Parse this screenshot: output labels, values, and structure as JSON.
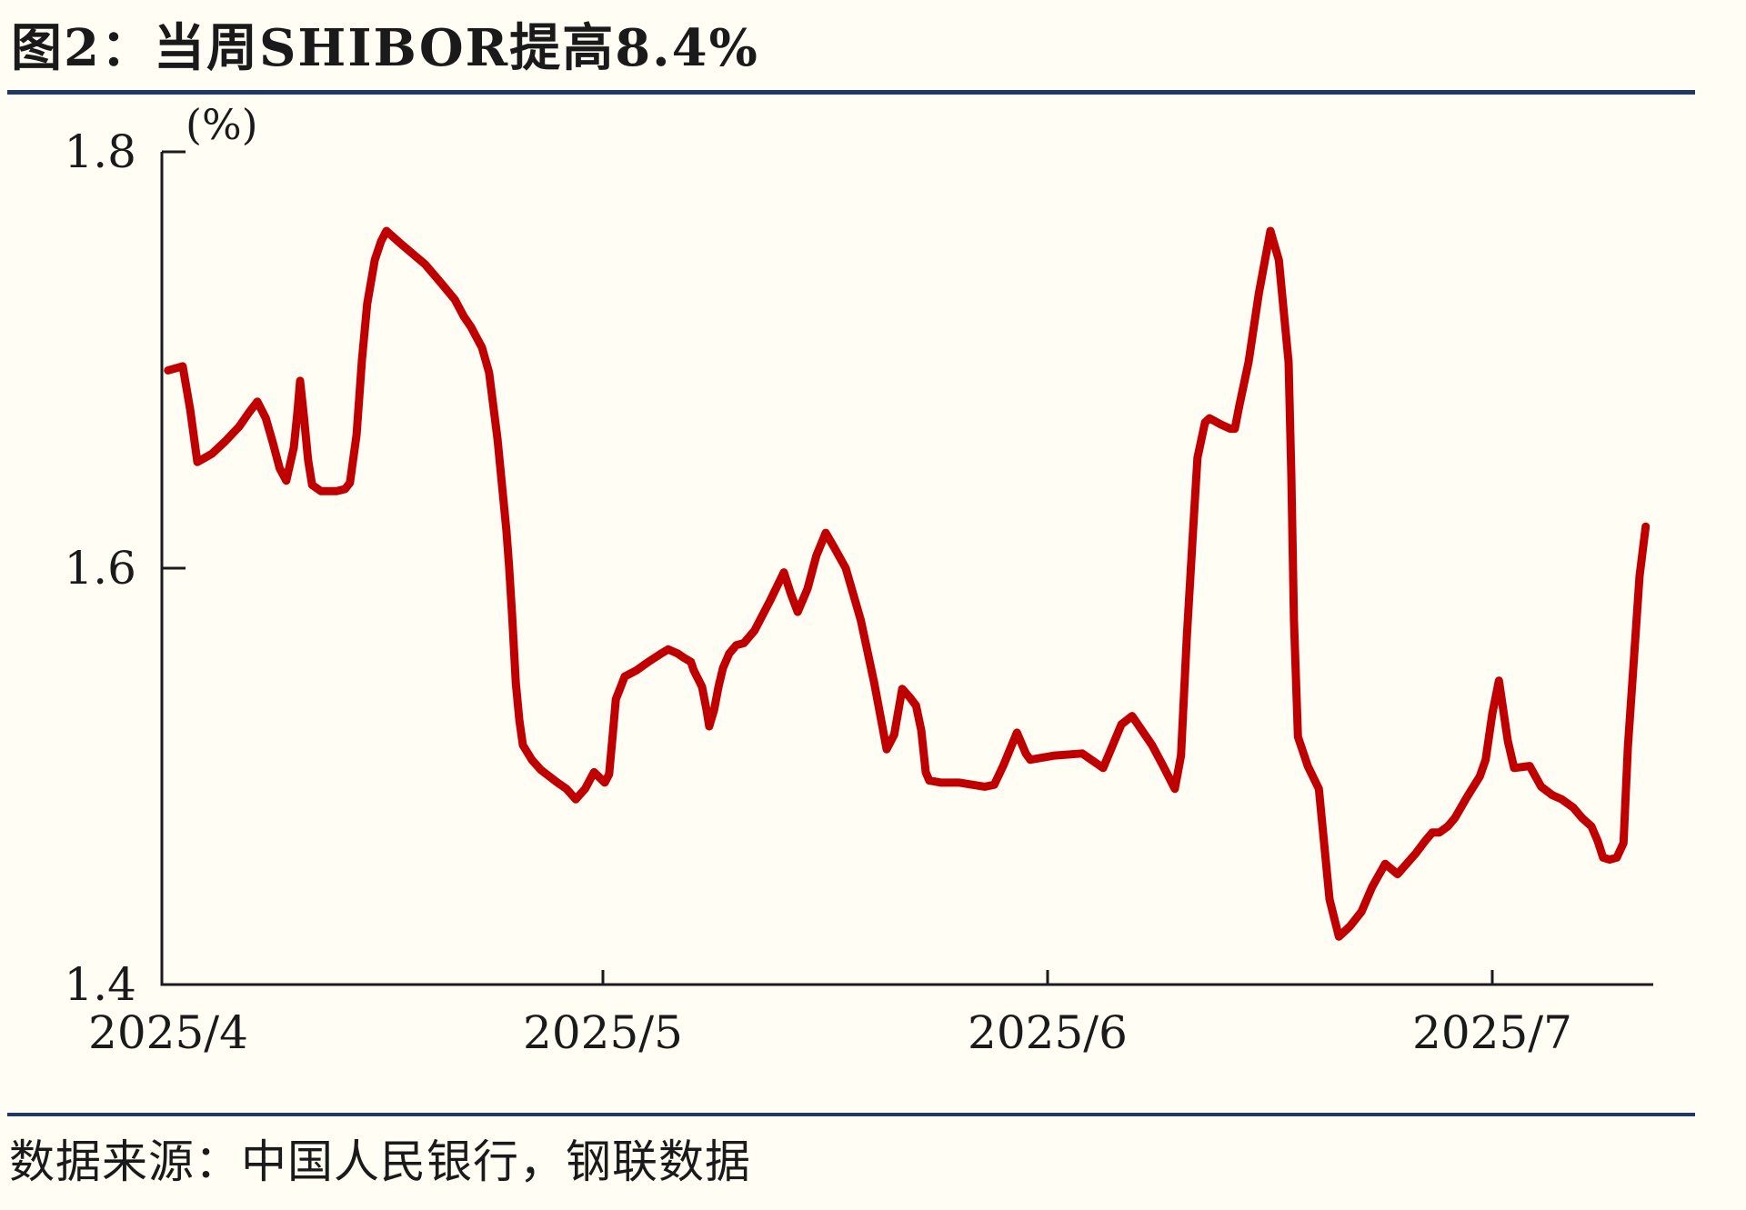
{
  "header": {
    "title": "图2：当周SHIBOR提高8.4%"
  },
  "footer": {
    "source": "数据来源：中国人民银行，钢联数据"
  },
  "colors": {
    "background": "#fffdf4",
    "line": "#c00000",
    "rule": "#1f3864",
    "axis": "#1b1b1b",
    "text": "#1a1a1a"
  },
  "chart_data": {
    "type": "line",
    "title": "当周SHIBOR提高8.4%",
    "unit_label": "(%)",
    "legend": "none",
    "grid": false,
    "x_axis": {
      "unit": "months since 2025/4/1",
      "ticks": [
        0,
        1,
        2,
        3
      ],
      "tick_labels": [
        "2025/4",
        "2025/5",
        "2025/6",
        "2025/7"
      ],
      "range": [
        0.008,
        3.362
      ]
    },
    "y_axis": {
      "ticks": [
        1.8,
        1.6,
        1.4
      ],
      "tick_labels": [
        "1.8",
        "1.6",
        "1.4"
      ],
      "range": [
        1.4,
        1.8
      ]
    },
    "series": [
      {
        "name": "SHIBOR",
        "color": "#c00000",
        "points": [
          [
            0.022,
            1.695
          ],
          [
            0.055,
            1.697
          ],
          [
            0.072,
            1.676
          ],
          [
            0.088,
            1.651
          ],
          [
            0.105,
            1.653
          ],
          [
            0.121,
            1.655
          ],
          [
            0.151,
            1.661
          ],
          [
            0.182,
            1.668
          ],
          [
            0.205,
            1.675
          ],
          [
            0.223,
            1.68
          ],
          [
            0.242,
            1.672
          ],
          [
            0.258,
            1.66
          ],
          [
            0.273,
            1.648
          ],
          [
            0.288,
            1.642
          ],
          [
            0.305,
            1.658
          ],
          [
            0.313,
            1.675
          ],
          [
            0.319,
            1.69
          ],
          [
            0.328,
            1.672
          ],
          [
            0.337,
            1.652
          ],
          [
            0.346,
            1.64
          ],
          [
            0.366,
            1.637
          ],
          [
            0.401,
            1.637
          ],
          [
            0.42,
            1.638
          ],
          [
            0.431,
            1.641
          ],
          [
            0.446,
            1.664
          ],
          [
            0.458,
            1.7
          ],
          [
            0.47,
            1.727
          ],
          [
            0.487,
            1.748
          ],
          [
            0.501,
            1.757
          ],
          [
            0.513,
            1.762
          ],
          [
            0.55,
            1.755
          ],
          [
            0.6,
            1.746
          ],
          [
            0.636,
            1.737
          ],
          [
            0.667,
            1.729
          ],
          [
            0.687,
            1.721
          ],
          [
            0.703,
            1.716
          ],
          [
            0.718,
            1.71
          ],
          [
            0.728,
            1.706
          ],
          [
            0.744,
            1.694
          ],
          [
            0.763,
            1.662
          ],
          [
            0.773,
            1.64
          ],
          [
            0.783,
            1.618
          ],
          [
            0.789,
            1.601
          ],
          [
            0.796,
            1.577
          ],
          [
            0.804,
            1.545
          ],
          [
            0.812,
            1.527
          ],
          [
            0.82,
            1.515
          ],
          [
            0.84,
            1.508
          ],
          [
            0.861,
            1.503
          ],
          [
            0.898,
            1.497
          ],
          [
            0.918,
            1.494
          ],
          [
            0.939,
            1.489
          ],
          [
            0.96,
            1.494
          ],
          [
            0.98,
            1.502
          ],
          [
            1.004,
            1.497
          ],
          [
            1.014,
            1.501
          ],
          [
            1.022,
            1.52
          ],
          [
            1.029,
            1.537
          ],
          [
            1.049,
            1.548
          ],
          [
            1.076,
            1.551
          ],
          [
            1.102,
            1.555
          ],
          [
            1.131,
            1.559
          ],
          [
            1.147,
            1.561
          ],
          [
            1.168,
            1.559
          ],
          [
            1.182,
            1.557
          ],
          [
            1.198,
            1.555
          ],
          [
            1.204,
            1.551
          ],
          [
            1.223,
            1.543
          ],
          [
            1.233,
            1.532
          ],
          [
            1.239,
            1.524
          ],
          [
            1.25,
            1.532
          ],
          [
            1.26,
            1.543
          ],
          [
            1.27,
            1.552
          ],
          [
            1.284,
            1.559
          ],
          [
            1.3,
            1.563
          ],
          [
            1.317,
            1.564
          ],
          [
            1.341,
            1.57
          ],
          [
            1.375,
            1.584
          ],
          [
            1.407,
            1.598
          ],
          [
            1.422,
            1.588
          ],
          [
            1.438,
            1.579
          ],
          [
            1.46,
            1.59
          ],
          [
            1.48,
            1.606
          ],
          [
            1.501,
            1.617
          ],
          [
            1.52,
            1.61
          ],
          [
            1.546,
            1.6
          ],
          [
            1.58,
            1.575
          ],
          [
            1.61,
            1.545
          ],
          [
            1.638,
            1.513
          ],
          [
            1.655,
            1.52
          ],
          [
            1.673,
            1.542
          ],
          [
            1.69,
            1.538
          ],
          [
            1.704,
            1.534
          ],
          [
            1.716,
            1.522
          ],
          [
            1.726,
            1.502
          ],
          [
            1.734,
            1.498
          ],
          [
            1.761,
            1.497
          ],
          [
            1.802,
            1.497
          ],
          [
            1.859,
            1.495
          ],
          [
            1.88,
            1.496
          ],
          [
            1.9,
            1.505
          ],
          [
            1.931,
            1.521
          ],
          [
            1.951,
            1.511
          ],
          [
            1.961,
            1.508
          ],
          [
            2.016,
            1.51
          ],
          [
            2.078,
            1.511
          ],
          [
            2.125,
            1.504
          ],
          [
            2.166,
            1.525
          ],
          [
            2.19,
            1.529
          ],
          [
            2.235,
            1.515
          ],
          [
            2.26,
            1.505
          ],
          [
            2.286,
            1.494
          ],
          [
            2.3,
            1.51
          ],
          [
            2.313,
            1.567
          ],
          [
            2.329,
            1.625
          ],
          [
            2.337,
            1.653
          ],
          [
            2.354,
            1.67
          ],
          [
            2.364,
            1.672
          ],
          [
            2.39,
            1.669
          ],
          [
            2.411,
            1.667
          ],
          [
            2.421,
            1.667
          ],
          [
            2.431,
            1.678
          ],
          [
            2.452,
            1.699
          ],
          [
            2.475,
            1.732
          ],
          [
            2.501,
            1.762
          ],
          [
            2.52,
            1.748
          ],
          [
            2.542,
            1.699
          ],
          [
            2.548,
            1.645
          ],
          [
            2.554,
            1.575
          ],
          [
            2.563,
            1.519
          ],
          [
            2.585,
            1.505
          ],
          [
            2.61,
            1.494
          ],
          [
            2.634,
            1.441
          ],
          [
            2.655,
            1.423
          ],
          [
            2.68,
            1.428
          ],
          [
            2.706,
            1.435
          ],
          [
            2.73,
            1.447
          ],
          [
            2.759,
            1.458
          ],
          [
            2.787,
            1.453
          ],
          [
            2.828,
            1.463
          ],
          [
            2.849,
            1.469
          ],
          [
            2.865,
            1.473
          ],
          [
            2.881,
            1.473
          ],
          [
            2.9,
            1.476
          ],
          [
            2.916,
            1.48
          ],
          [
            2.943,
            1.49
          ],
          [
            2.972,
            1.5
          ],
          [
            2.985,
            1.508
          ],
          [
            3.0,
            1.53
          ],
          [
            3.015,
            1.546
          ],
          [
            3.035,
            1.517
          ],
          [
            3.049,
            1.504
          ],
          [
            3.084,
            1.505
          ],
          [
            3.11,
            1.495
          ],
          [
            3.135,
            1.491
          ],
          [
            3.156,
            1.489
          ],
          [
            3.182,
            1.485
          ],
          [
            3.202,
            1.48
          ],
          [
            3.223,
            1.476
          ],
          [
            3.237,
            1.469
          ],
          [
            3.249,
            1.461
          ],
          [
            3.264,
            1.46
          ],
          [
            3.28,
            1.461
          ],
          [
            3.295,
            1.468
          ],
          [
            3.305,
            1.514
          ],
          [
            3.319,
            1.558
          ],
          [
            3.331,
            1.596
          ],
          [
            3.345,
            1.62
          ]
        ]
      }
    ]
  }
}
